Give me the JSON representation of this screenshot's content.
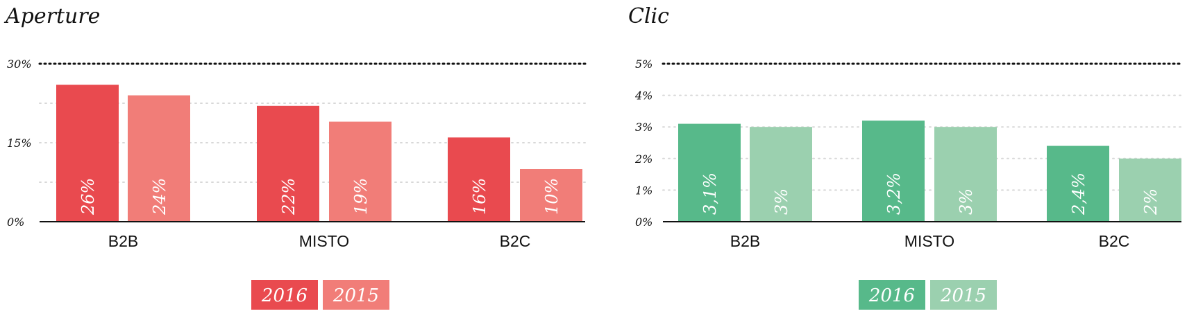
{
  "chart_data": [
    {
      "type": "bar",
      "title": "Aperture",
      "categories": [
        "B2B",
        "MISTO",
        "B2C"
      ],
      "series": [
        {
          "name": "2016",
          "color": "#e94a4f",
          "values": [
            26,
            22,
            16
          ],
          "labels": [
            "26%",
            "22%",
            "16%"
          ]
        },
        {
          "name": "2015",
          "color": "#f17d78",
          "values": [
            24,
            19,
            10
          ],
          "labels": [
            "24%",
            "19%",
            "10%"
          ]
        }
      ],
      "ylim": [
        0,
        30
      ],
      "yticks": [
        {
          "value": 0,
          "label": "0%"
        },
        {
          "value": 15,
          "label": "15%"
        },
        {
          "value": 30,
          "label": "30%"
        }
      ],
      "minor_grid": [
        7.5,
        22.5
      ],
      "grid": true,
      "legend_position": "bottom-center"
    },
    {
      "type": "bar",
      "title": "Clic",
      "categories": [
        "B2B",
        "MISTO",
        "B2C"
      ],
      "series": [
        {
          "name": "2016",
          "color": "#57b98a",
          "values": [
            3.1,
            3.2,
            2.4
          ],
          "labels": [
            "3,1%",
            "3,2%",
            "2,4%"
          ]
        },
        {
          "name": "2015",
          "color": "#9bd0af",
          "values": [
            3,
            3,
            2
          ],
          "labels": [
            "3%",
            "3%",
            "2%"
          ]
        }
      ],
      "ylim": [
        0,
        5
      ],
      "yticks": [
        {
          "value": 0,
          "label": "0%"
        },
        {
          "value": 1,
          "label": "1%"
        },
        {
          "value": 2,
          "label": "2%"
        },
        {
          "value": 3,
          "label": "3%"
        },
        {
          "value": 4,
          "label": "4%"
        },
        {
          "value": 5,
          "label": "5%"
        }
      ],
      "minor_grid": [],
      "grid": true,
      "legend_position": "bottom-center"
    }
  ]
}
